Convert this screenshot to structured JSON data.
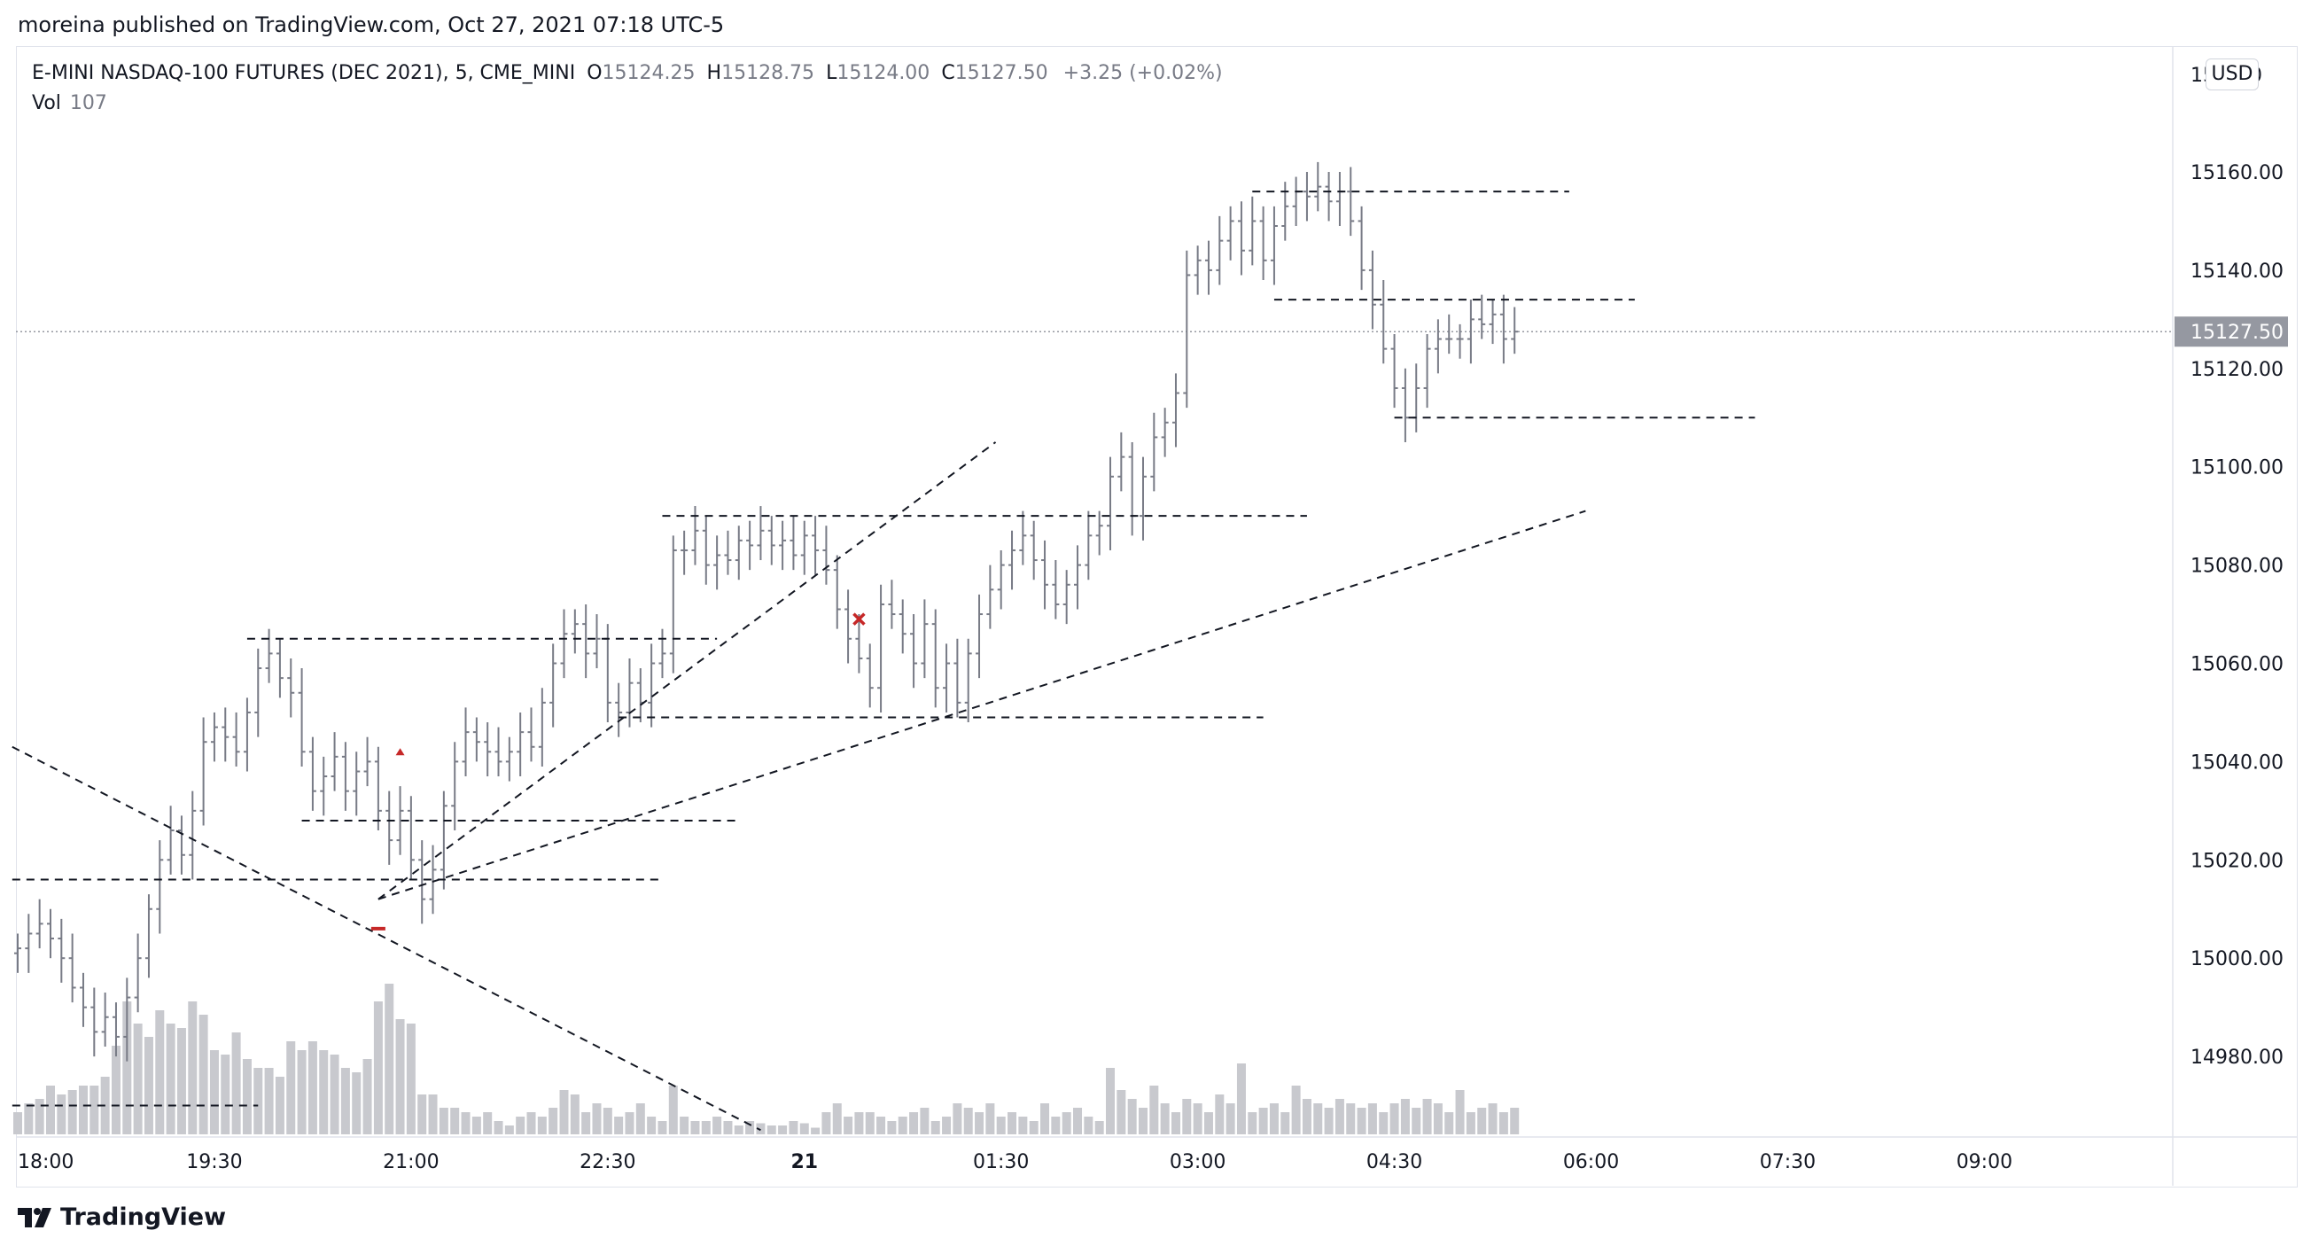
{
  "header": {
    "published_by": "moreina published on TradingView.com, Oct 27, 2021 07:18 UTC-5"
  },
  "legend": {
    "symbol": "E-MINI NASDAQ-100 FUTURES (DEC 2021), 5, CME_MINI",
    "open_label": "O",
    "open_value": "15124.25",
    "high_label": "H",
    "high_value": "15128.75",
    "low_label": "L",
    "low_value": "15124.00",
    "close_label": "C",
    "close_value": "15127.50",
    "change": "+3.25 (+0.02%)",
    "vol_label": "Vol",
    "vol_value": "107"
  },
  "currency_badge": "USD",
  "last_price_label": "15127.50",
  "footer": {
    "brand": "TradingView",
    "logo_icon": "tradingview-logo-icon"
  },
  "colors": {
    "bar": "#787b86",
    "volume": "#c8c9ce",
    "drawing": "#131722",
    "marker": "#c62828",
    "last_price_tag": "#9598a1"
  },
  "chart_data": {
    "type": "ohlc",
    "interval": "5",
    "y_axis": {
      "ticks": [
        "15160.00",
        "15140.00",
        "15120.00",
        "15100.00",
        "15080.00",
        "15060.00",
        "15040.00",
        "15020.00",
        "15000.00",
        "14980.00"
      ],
      "range": [
        14964,
        15180
      ],
      "top_tick_partial": "151_00"
    },
    "x_axis": {
      "ticks": [
        {
          "label": "18:00",
          "bar": 0
        },
        {
          "label": "19:30",
          "bar": 18
        },
        {
          "label": "21:00",
          "bar": 36
        },
        {
          "label": "22:30",
          "bar": 54
        },
        {
          "label": "21",
          "bar": 72,
          "bold": true
        },
        {
          "label": "01:30",
          "bar": 90
        },
        {
          "label": "03:00",
          "bar": 108
        },
        {
          "label": "04:30",
          "bar": 126
        },
        {
          "label": "06:00",
          "bar": 144
        },
        {
          "label": "07:30",
          "bar": 162
        },
        {
          "label": "09:00",
          "bar": 180
        }
      ]
    },
    "last_price": 15127.5,
    "closes": [
      15002,
      15005,
      15007,
      15004,
      15000,
      14994,
      14990,
      14985,
      14988,
      14984,
      14992,
      15000,
      15010,
      15020,
      15026,
      15021,
      15030,
      15044,
      15047,
      15045,
      15042,
      15050,
      15059,
      15062,
      15057,
      15054,
      15042,
      15034,
      15037,
      15041,
      15034,
      15038,
      15040,
      15030,
      15024,
      15030,
      15020,
      15012,
      15018,
      15031,
      15040,
      15046,
      15044,
      15042,
      15040,
      15042,
      15046,
      15043,
      15052,
      15060,
      15066,
      15068,
      15062,
      15065,
      15052,
      15050,
      15056,
      15052,
      15060,
      15062,
      15083,
      15083,
      15087,
      15080,
      15082,
      15081,
      15085,
      15084,
      15087,
      15084,
      15085,
      15082,
      15086,
      15083,
      15079,
      15071,
      15065,
      15061,
      15055,
      15072,
      15070,
      15066,
      15060,
      15068,
      15055,
      15060,
      15052,
      15062,
      15070,
      15075,
      15080,
      15083,
      15086,
      15081,
      15076,
      15072,
      15076,
      15080,
      15086,
      15088,
      15098,
      15102,
      15090,
      15098,
      15106,
      15109,
      15115,
      15139,
      15142,
      15140,
      15146,
      15150,
      15144,
      15150,
      15142,
      15149,
      15153,
      15156,
      15155,
      15157,
      15154,
      15156,
      15150,
      15140,
      15133,
      15124,
      15116,
      15110,
      15116,
      15124,
      15126,
      15126,
      15126,
      15130,
      15129,
      15131,
      15126,
      15127.5
    ],
    "volumes": [
      10,
      14,
      16,
      22,
      18,
      20,
      22,
      22,
      26,
      40,
      60,
      50,
      44,
      56,
      50,
      48,
      60,
      54,
      38,
      36,
      46,
      34,
      30,
      30,
      26,
      42,
      38,
      42,
      38,
      36,
      30,
      28,
      34,
      60,
      68,
      52,
      50,
      18,
      18,
      12,
      12,
      10,
      8,
      10,
      6,
      4,
      8,
      10,
      8,
      12,
      20,
      18,
      10,
      14,
      12,
      8,
      10,
      14,
      8,
      6,
      22,
      8,
      6,
      6,
      8,
      6,
      4,
      6,
      5,
      4,
      4,
      6,
      5,
      3,
      10,
      14,
      8,
      10,
      10,
      8,
      6,
      8,
      10,
      12,
      6,
      8,
      14,
      12,
      10,
      14,
      8,
      10,
      8,
      6,
      14,
      8,
      10,
      12,
      8,
      6,
      30,
      20,
      16,
      12,
      22,
      14,
      10,
      16,
      14,
      10,
      18,
      14,
      32,
      10,
      12,
      14,
      10,
      22,
      16,
      14,
      12,
      16,
      14,
      12,
      14,
      10,
      14,
      16,
      12,
      16,
      14,
      10,
      20,
      10,
      12,
      14,
      10,
      12
    ],
    "drawings": [
      {
        "kind": "hline",
        "price": 15016,
        "bar_start": -0.5,
        "bar_end": 59
      },
      {
        "kind": "hline",
        "price": 15065,
        "bar_start": 21,
        "bar_end": 64
      },
      {
        "kind": "hline",
        "price": 15028,
        "bar_start": 26,
        "bar_end": 66
      },
      {
        "kind": "hline",
        "price": 15090,
        "bar_start": 59,
        "bar_end": 118
      },
      {
        "kind": "hline",
        "price": 15049,
        "bar_start": 55,
        "bar_end": 114
      },
      {
        "kind": "hline",
        "price": 15156,
        "bar_start": 113,
        "bar_end": 142
      },
      {
        "kind": "hline",
        "price": 15134,
        "bar_start": 115,
        "bar_end": 148
      },
      {
        "kind": "hline",
        "price": 15110,
        "bar_start": 126,
        "bar_end": 159
      },
      {
        "kind": "hline",
        "price": 14970,
        "bar_start": -0.5,
        "bar_end": 22
      },
      {
        "kind": "segment",
        "from": [
          -0.5,
          15043
        ],
        "to": [
          68,
          14965
        ]
      },
      {
        "kind": "segment",
        "from": [
          33,
          15012
        ],
        "to": [
          89.5,
          15105
        ]
      },
      {
        "kind": "segment",
        "from": [
          33,
          15012
        ],
        "to": [
          143.5,
          15091
        ]
      }
    ],
    "markers": [
      {
        "kind": "x",
        "bar": 77,
        "price": 15069
      },
      {
        "kind": "arrow-up",
        "bar": 35,
        "price": 15042
      },
      {
        "kind": "dash",
        "bar": 33,
        "price": 15006
      }
    ]
  }
}
